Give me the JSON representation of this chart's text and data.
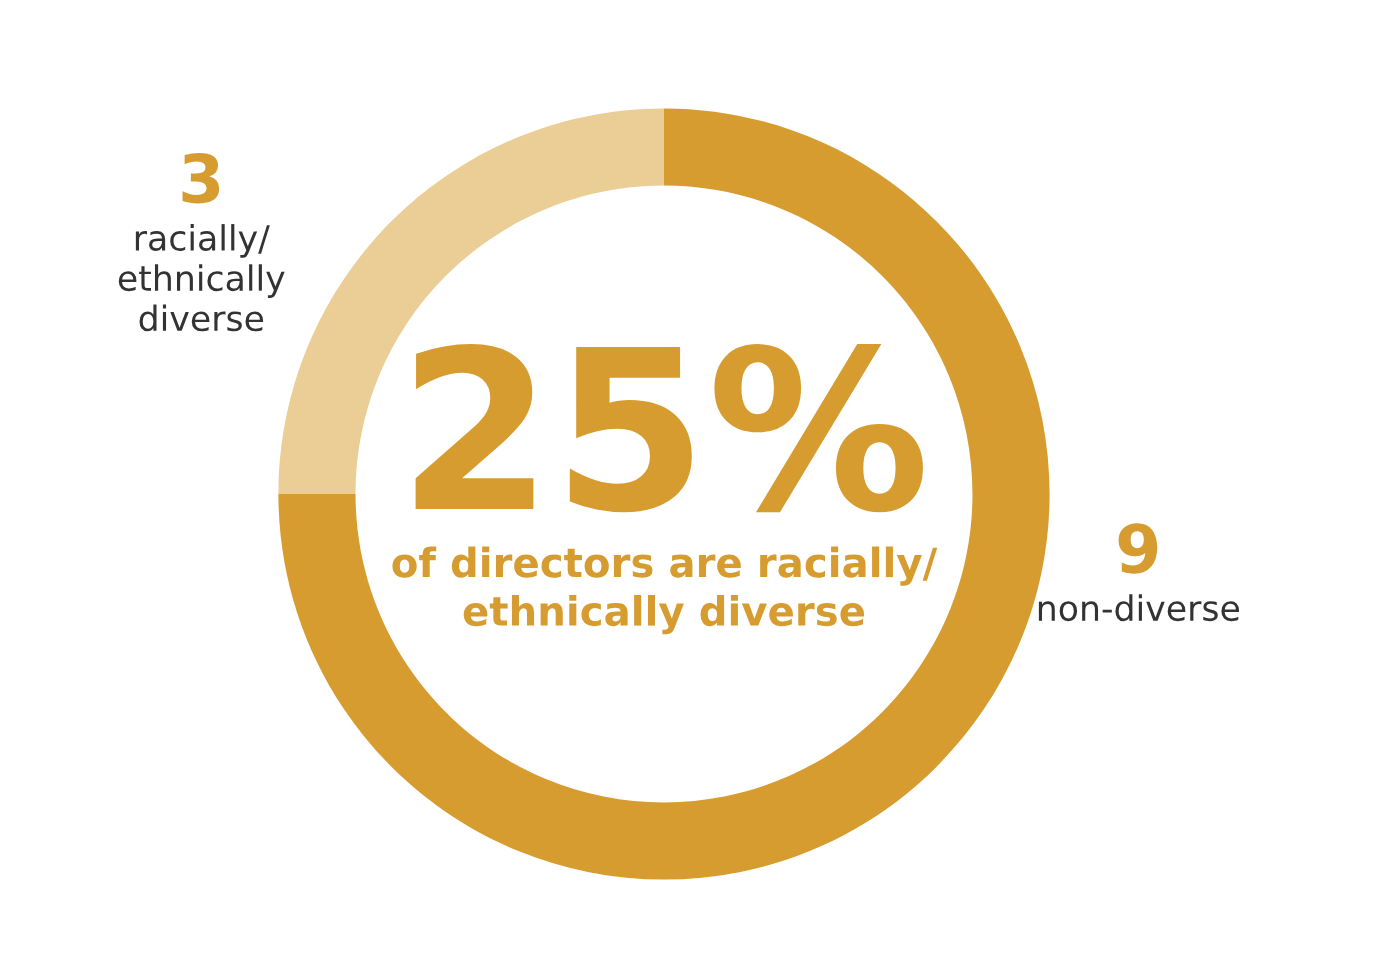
{
  "chart_data": {
    "type": "donut",
    "categories": [
      "non-diverse",
      "racially/\nethnically\ndiverse"
    ],
    "values": [
      9,
      3
    ],
    "colors": [
      "#d69c2f",
      "#ebcd96"
    ],
    "data_labels": true,
    "legend": false,
    "annotations": [
      "25%",
      "of directors are racially/\nethnically diverse"
    ]
  }
}
